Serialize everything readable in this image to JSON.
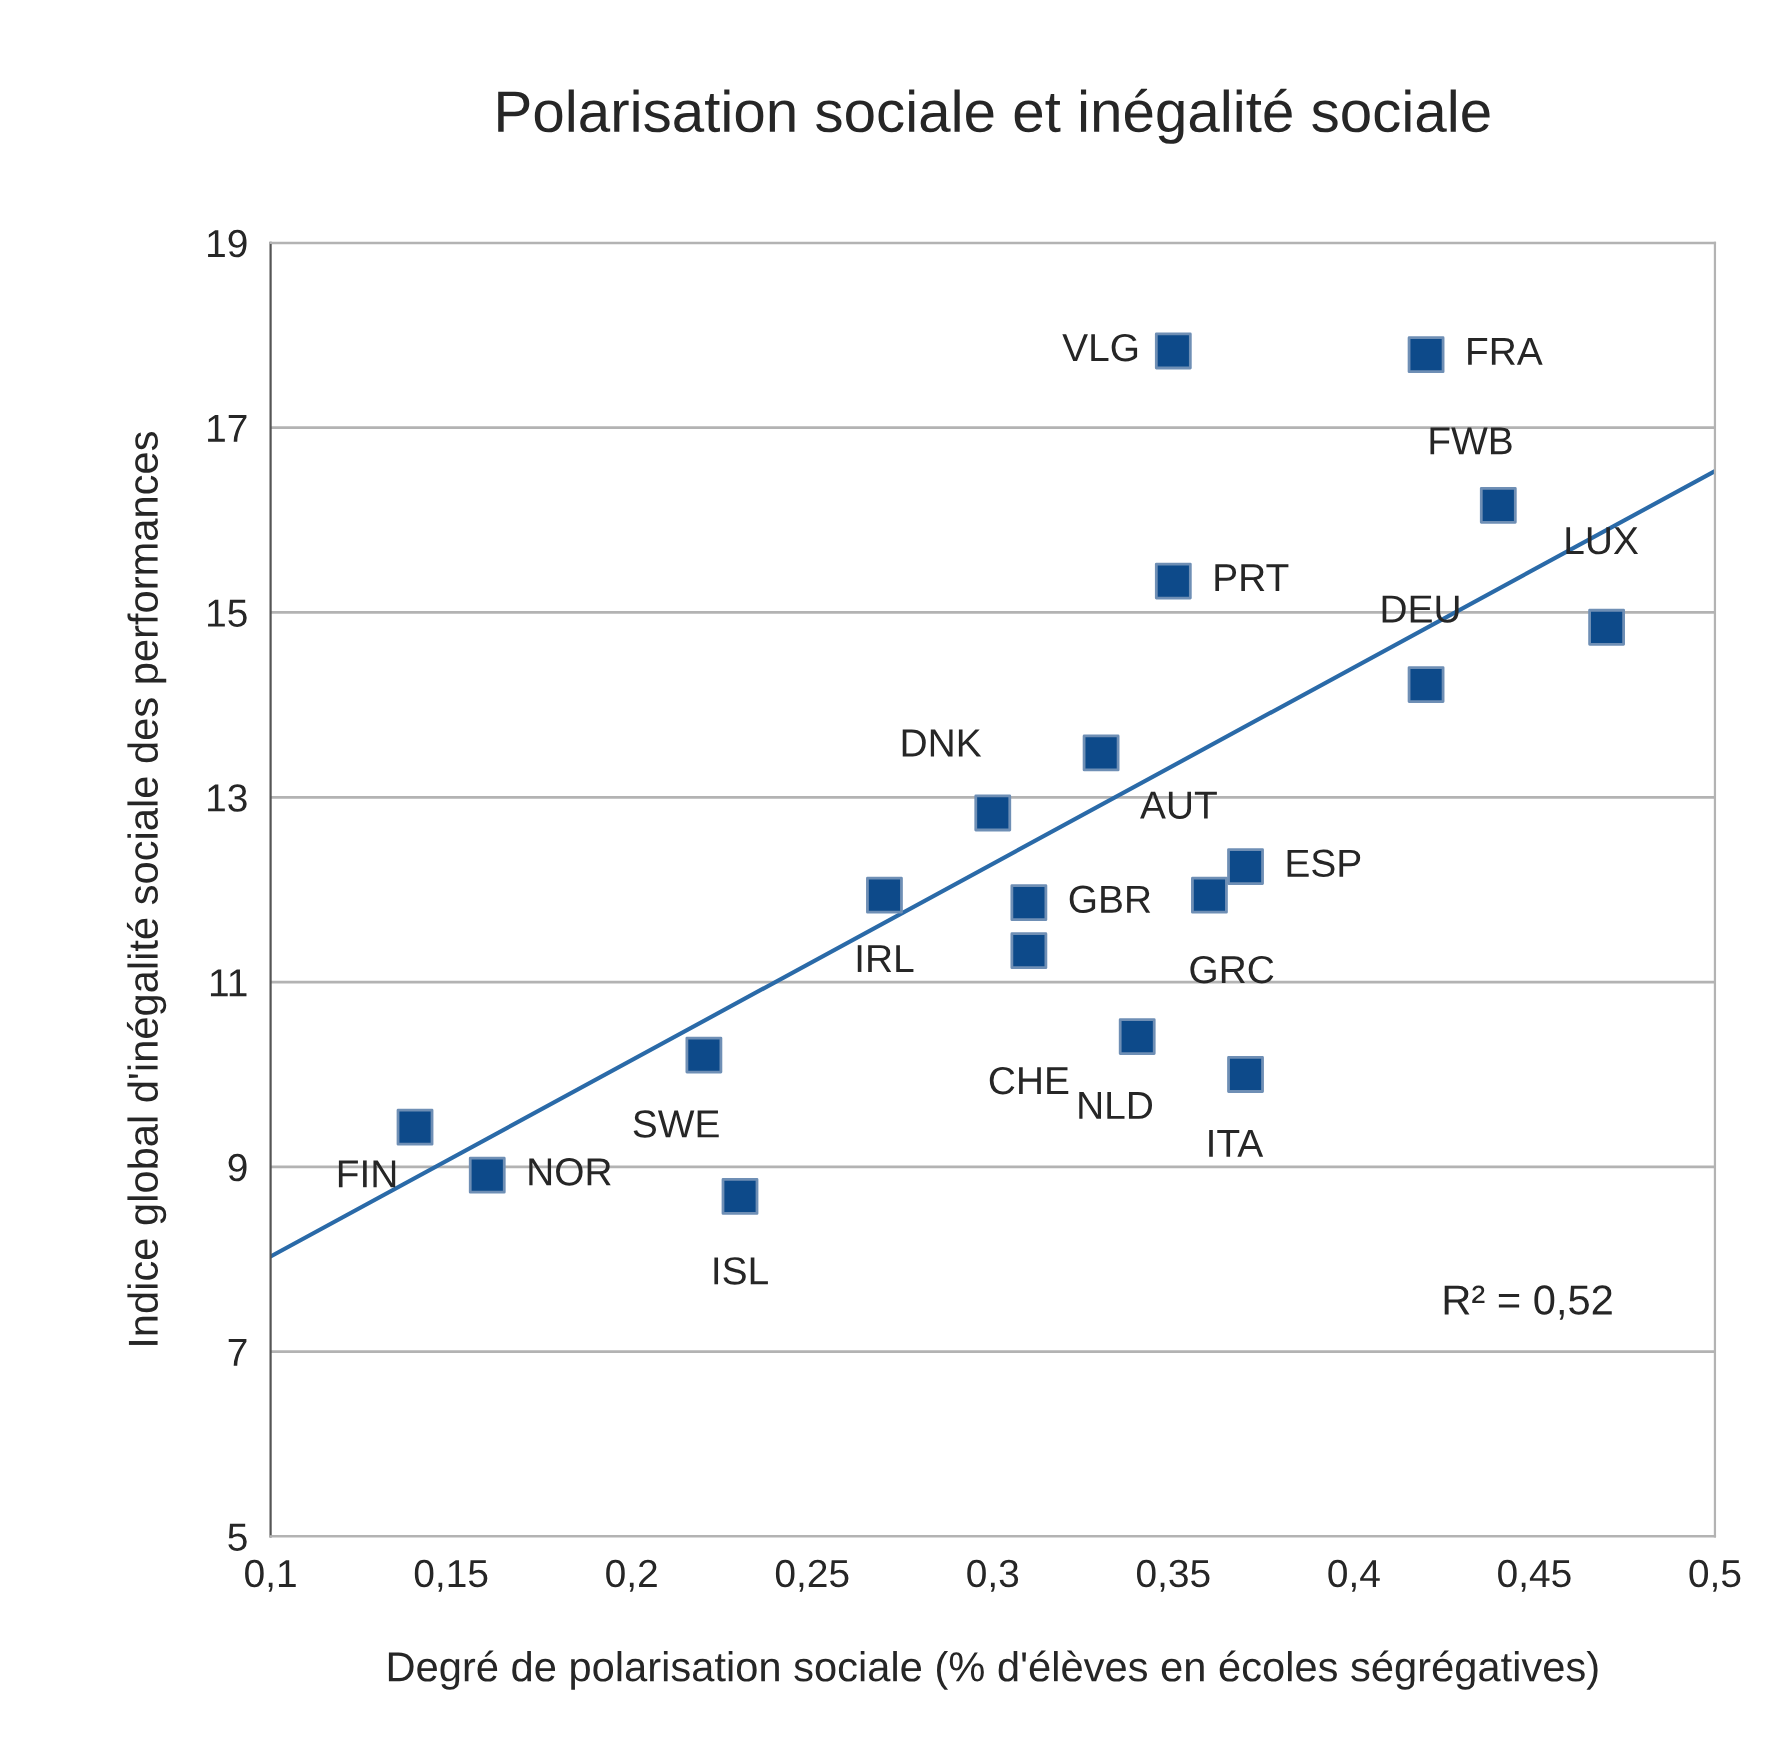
{
  "chart_data": {
    "type": "scatter",
    "title": "Polarisation sociale et inégalité sociale",
    "xlabel": "Degré de polarisation sociale (% d'élèves en écoles ségrégatives)",
    "ylabel": "Indice global d'inégalité sociale des performances",
    "xlim": [
      0.1,
      0.5
    ],
    "ylim": [
      5,
      19
    ],
    "xticks": [
      {
        "value": 0.1,
        "label": "0,1"
      },
      {
        "value": 0.15,
        "label": "0,15"
      },
      {
        "value": 0.2,
        "label": "0,2"
      },
      {
        "value": 0.25,
        "label": "0,25"
      },
      {
        "value": 0.3,
        "label": "0,3"
      },
      {
        "value": 0.35,
        "label": "0,35"
      },
      {
        "value": 0.4,
        "label": "0,4"
      },
      {
        "value": 0.45,
        "label": "0,45"
      },
      {
        "value": 0.5,
        "label": "0,5"
      }
    ],
    "yticks": [
      5,
      7,
      9,
      11,
      13,
      15,
      17,
      19
    ],
    "grid": "y",
    "legend": false,
    "series": [
      {
        "marker": "square",
        "color": "#0d4a8a",
        "x": [
          0.35,
          0.42,
          0.44,
          0.35,
          0.47,
          0.42,
          0.3,
          0.33,
          0.27,
          0.31,
          0.31,
          0.36,
          0.37,
          0.34,
          0.37,
          0.22,
          0.14,
          0.16,
          0.23
        ],
        "values": [
          17.83,
          17.79,
          16.16,
          15.34,
          14.84,
          14.22,
          12.83,
          13.48,
          11.94,
          11.86,
          11.34,
          11.94,
          12.25,
          10.41,
          10.0,
          10.21,
          9.43,
          8.91,
          8.68
        ]
      },
      {
        "type": "line",
        "marker": "none",
        "color": "#2a6aa8",
        "x": [
          0.1,
          0.5
        ],
        "values": [
          8.03,
          16.53
        ]
      }
    ],
    "annotations": [
      {
        "text": "VLG",
        "x": 0.35,
        "y": 17.83
      },
      {
        "text": "FRA",
        "x": 0.42,
        "y": 17.79
      },
      {
        "text": "FWB",
        "x": 0.44,
        "y": 16.16
      },
      {
        "text": "PRT",
        "x": 0.35,
        "y": 15.34
      },
      {
        "text": "LUX",
        "x": 0.47,
        "y": 14.84
      },
      {
        "text": "DEU",
        "x": 0.42,
        "y": 14.22
      },
      {
        "text": "DNK",
        "x": 0.3,
        "y": 12.83
      },
      {
        "text": "AUT",
        "x": 0.33,
        "y": 13.48
      },
      {
        "text": "IRL",
        "x": 0.27,
        "y": 11.94
      },
      {
        "text": "GBR",
        "x": 0.31,
        "y": 11.86
      },
      {
        "text": "CHE",
        "x": 0.31,
        "y": 11.34
      },
      {
        "text": "GRC",
        "x": 0.36,
        "y": 11.94
      },
      {
        "text": "ESP",
        "x": 0.37,
        "y": 12.25
      },
      {
        "text": "NLD",
        "x": 0.34,
        "y": 10.41
      },
      {
        "text": "ITA",
        "x": 0.37,
        "y": 10.0
      },
      {
        "text": "SWE",
        "x": 0.22,
        "y": 10.21
      },
      {
        "text": "FIN",
        "x": 0.14,
        "y": 9.43
      },
      {
        "text": "NOR",
        "x": 0.16,
        "y": 8.91
      },
      {
        "text": "ISL",
        "x": 0.23,
        "y": 8.68
      },
      "R² = 0,52"
    ]
  }
}
